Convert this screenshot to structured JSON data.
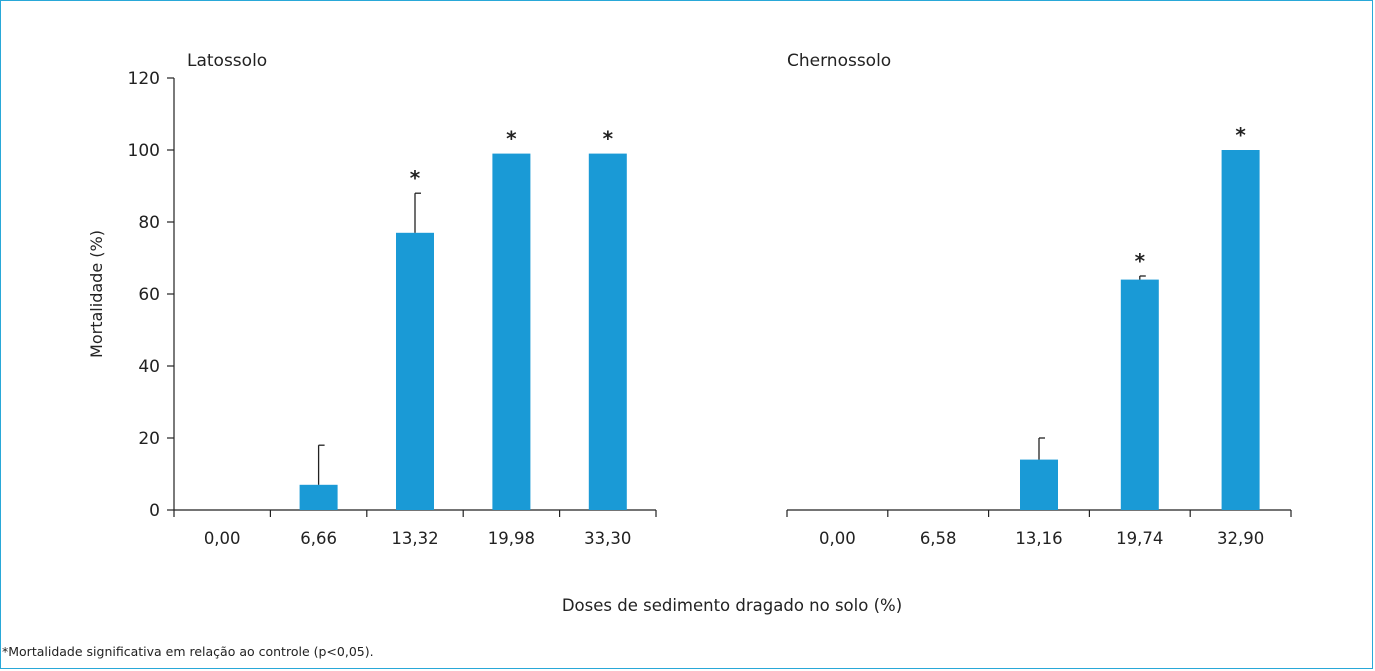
{
  "colors": {
    "bar": "#1a9ad6",
    "axis": "#222222",
    "frame": "#29a8d8"
  },
  "shared_xlabel": "Doses de sedimento dragado no solo (%)",
  "footnote": "*Mortalidade significativa em relação ao controle (p<0,05).",
  "chart_data": [
    {
      "type": "bar",
      "title": "Latossolo",
      "ylabel": "Mortalidade (%)",
      "ylim": [
        0,
        120
      ],
      "yticks": [
        0,
        20,
        40,
        60,
        80,
        100,
        120
      ],
      "categories": [
        "0,00",
        "6,66",
        "13,32",
        "19,98",
        "33,30"
      ],
      "values": [
        0,
        7,
        77,
        99,
        99
      ],
      "errors": [
        0,
        11,
        11,
        0,
        0
      ],
      "significant": [
        false,
        false,
        true,
        true,
        true
      ],
      "significance_marker": "*"
    },
    {
      "type": "bar",
      "title": "Chernossolo",
      "ylim": [
        0,
        120
      ],
      "categories": [
        "0,00",
        "6,58",
        "13,16",
        "19,74",
        "32,90"
      ],
      "values": [
        0,
        0,
        14,
        64,
        100
      ],
      "errors": [
        0,
        0,
        6,
        1,
        0
      ],
      "significant": [
        false,
        false,
        false,
        true,
        true
      ],
      "significance_marker": "*"
    }
  ]
}
